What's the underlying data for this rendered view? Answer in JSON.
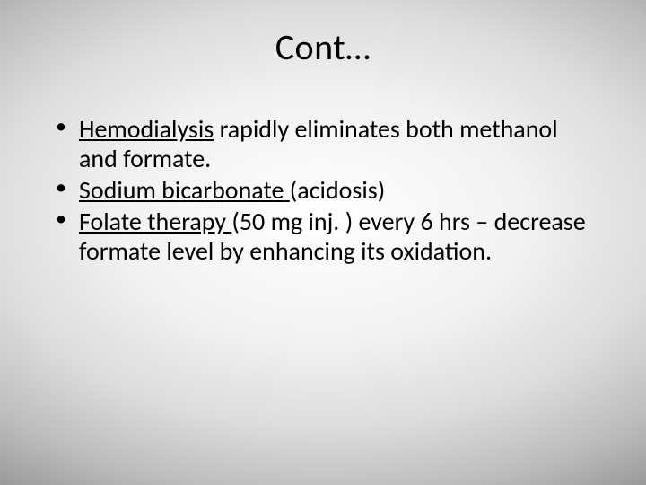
{
  "slide": {
    "title": "Cont…",
    "bullets": [
      {
        "underlined": "Hemodialysis",
        "rest": " rapidly eliminates both methanol and formate."
      },
      {
        "underlined": "Sodium bicarbonate ",
        "rest": "(acidosis)"
      },
      {
        "underlined": "Folate therapy ",
        "rest": "(50 mg inj. ) every 6 hrs – decrease formate level by enhancing its oxidation."
      }
    ]
  },
  "style": {
    "title_fontsize": 40,
    "body_fontsize": 28,
    "text_color": "#000000",
    "background_gradient_stops": [
      "#ffffff",
      "#f2f2f2",
      "#dcdcdc",
      "#bcbcbc",
      "#8e8e8e",
      "#5e5e5e",
      "#3a3a3a"
    ],
    "font_family": "Calibri"
  }
}
